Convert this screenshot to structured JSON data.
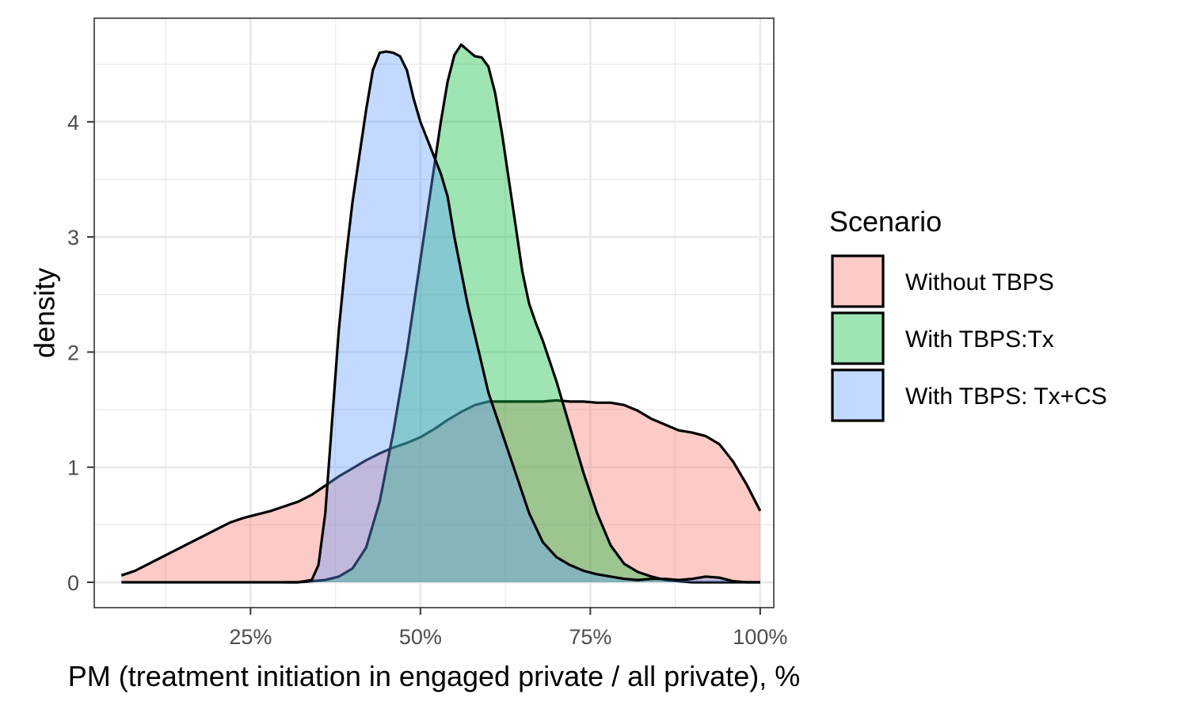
{
  "chart_data": {
    "type": "area",
    "title": "",
    "xlabel": "PM (treatment initiation in engaged private / all private), %",
    "ylabel": "density",
    "xlim": [
      0.02,
      1.02
    ],
    "ylim": [
      -0.22,
      4.9
    ],
    "x_ticks": [
      0.25,
      0.5,
      0.75,
      1.0
    ],
    "x_tick_labels": [
      "25%",
      "50%",
      "75%",
      "100%"
    ],
    "y_ticks": [
      0,
      1,
      2,
      3,
      4
    ],
    "y_tick_labels": [
      "0",
      "1",
      "2",
      "3",
      "4"
    ],
    "grid": true,
    "legend_title": "Scenario",
    "legend_position": "right",
    "series": [
      {
        "name": "Without TBPS",
        "color": "#F8766D",
        "x": [
          0.06,
          0.08,
          0.1,
          0.12,
          0.14,
          0.16,
          0.18,
          0.2,
          0.22,
          0.24,
          0.26,
          0.28,
          0.3,
          0.32,
          0.34,
          0.36,
          0.38,
          0.4,
          0.42,
          0.44,
          0.46,
          0.48,
          0.5,
          0.52,
          0.54,
          0.56,
          0.58,
          0.6,
          0.62,
          0.64,
          0.66,
          0.68,
          0.7,
          0.72,
          0.74,
          0.76,
          0.78,
          0.8,
          0.82,
          0.84,
          0.86,
          0.88,
          0.9,
          0.92,
          0.94,
          0.96,
          0.98,
          1.0
        ],
        "y": [
          0.06,
          0.1,
          0.16,
          0.22,
          0.28,
          0.34,
          0.4,
          0.46,
          0.52,
          0.56,
          0.59,
          0.62,
          0.66,
          0.7,
          0.76,
          0.84,
          0.92,
          0.99,
          1.06,
          1.12,
          1.17,
          1.21,
          1.26,
          1.33,
          1.41,
          1.48,
          1.54,
          1.57,
          1.57,
          1.57,
          1.57,
          1.57,
          1.58,
          1.57,
          1.57,
          1.56,
          1.56,
          1.54,
          1.49,
          1.42,
          1.37,
          1.32,
          1.3,
          1.27,
          1.2,
          1.05,
          0.85,
          0.62
        ]
      },
      {
        "name": "With TBPS:Tx",
        "color": "#00BA38",
        "x": [
          0.3,
          0.32,
          0.34,
          0.36,
          0.38,
          0.4,
          0.42,
          0.44,
          0.46,
          0.48,
          0.5,
          0.52,
          0.53,
          0.54,
          0.55,
          0.56,
          0.57,
          0.58,
          0.59,
          0.6,
          0.61,
          0.62,
          0.63,
          0.64,
          0.65,
          0.66,
          0.67,
          0.68,
          0.7,
          0.72,
          0.74,
          0.76,
          0.78,
          0.8,
          0.82,
          0.84,
          0.86,
          0.88,
          0.9,
          0.92,
          0.94,
          0.96,
          0.98,
          1.0
        ],
        "y": [
          0.0,
          0.0,
          0.01,
          0.02,
          0.05,
          0.12,
          0.3,
          0.7,
          1.3,
          2.0,
          2.8,
          3.6,
          4.0,
          4.35,
          4.58,
          4.67,
          4.62,
          4.57,
          4.56,
          4.48,
          4.25,
          3.9,
          3.5,
          3.1,
          2.7,
          2.42,
          2.25,
          2.1,
          1.75,
          1.35,
          0.95,
          0.6,
          0.32,
          0.16,
          0.09,
          0.05,
          0.02,
          0.01,
          0.0,
          0.0,
          0.0,
          0.0,
          0.0,
          0.0
        ]
      },
      {
        "name": "With TBPS: Tx+CS",
        "color": "#619CFF",
        "x": [
          0.06,
          0.1,
          0.15,
          0.2,
          0.25,
          0.28,
          0.3,
          0.32,
          0.34,
          0.35,
          0.36,
          0.37,
          0.38,
          0.39,
          0.4,
          0.41,
          0.42,
          0.43,
          0.44,
          0.45,
          0.46,
          0.47,
          0.48,
          0.49,
          0.5,
          0.51,
          0.52,
          0.53,
          0.54,
          0.55,
          0.56,
          0.57,
          0.58,
          0.59,
          0.6,
          0.62,
          0.64,
          0.66,
          0.68,
          0.7,
          0.72,
          0.74,
          0.76,
          0.78,
          0.8,
          0.82,
          0.84,
          0.86,
          0.88,
          0.9,
          0.92,
          0.94,
          0.96,
          0.98,
          1.0
        ],
        "y": [
          0.0,
          0.0,
          0.0,
          0.0,
          0.0,
          0.0,
          0.0,
          0.0,
          0.02,
          0.15,
          0.6,
          1.4,
          2.2,
          2.8,
          3.3,
          3.7,
          4.1,
          4.45,
          4.6,
          4.61,
          4.6,
          4.57,
          4.45,
          4.2,
          4.0,
          3.85,
          3.7,
          3.55,
          3.35,
          3.0,
          2.7,
          2.4,
          2.15,
          1.9,
          1.65,
          1.3,
          0.95,
          0.6,
          0.35,
          0.22,
          0.15,
          0.1,
          0.07,
          0.05,
          0.03,
          0.02,
          0.03,
          0.03,
          0.02,
          0.03,
          0.05,
          0.04,
          0.01,
          0.0,
          0.0
        ]
      }
    ]
  }
}
